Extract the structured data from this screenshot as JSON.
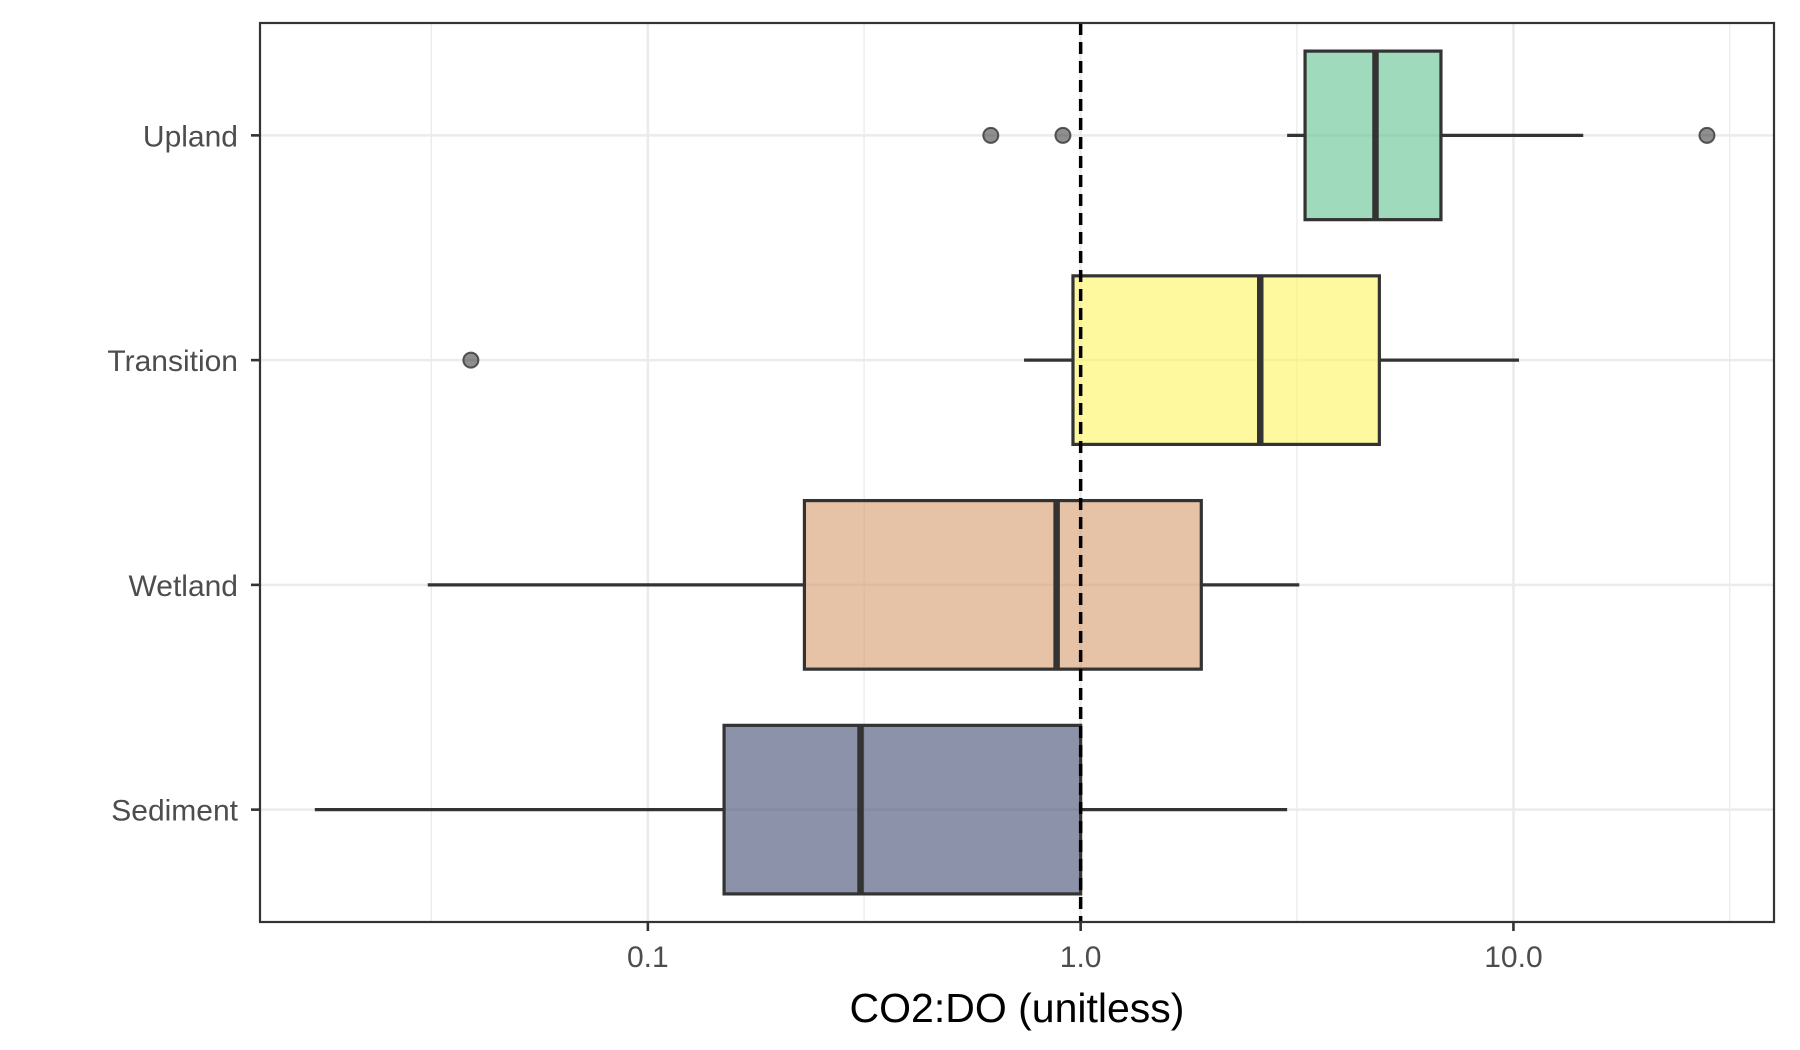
{
  "chart_data": {
    "type": "boxplot",
    "orientation": "horizontal",
    "xlabel": "CO2:DO (unitless)",
    "ylabel": "",
    "x_scale": "log10",
    "xlim": [
      0.0127,
      40
    ],
    "x_ticks": [
      {
        "value": 0.1,
        "label": "0.1"
      },
      {
        "value": 1,
        "label": "1.0"
      },
      {
        "value": 10,
        "label": "10.0"
      }
    ],
    "x_minor_grid": [
      0.0316,
      0.316,
      3.16,
      31.6
    ],
    "reference_line": {
      "x": 1,
      "style": "dashed",
      "color": "#000000"
    },
    "grid": true,
    "theme": "bw",
    "box_opacity": 0.6,
    "categories": [
      "Upland",
      "Transition",
      "Wetland",
      "Sediment"
    ],
    "boxes": [
      {
        "category": "Upland",
        "color": "#5ec28e",
        "whisker_low": 3.0,
        "q1": 3.3,
        "median": 4.8,
        "q3": 6.8,
        "whisker_high": 14.5,
        "outliers": [
          0.62,
          0.91,
          28.0
        ]
      },
      {
        "category": "Transition",
        "color": "#fdf45f",
        "whisker_low": 0.74,
        "q1": 0.96,
        "median": 2.6,
        "q3": 4.9,
        "whisker_high": 10.3,
        "outliers": [
          0.039
        ]
      },
      {
        "category": "Wetland",
        "color": "#d69a6a",
        "whisker_low": 0.031,
        "q1": 0.23,
        "median": 0.88,
        "q3": 1.9,
        "whisker_high": 3.2,
        "outliers": []
      },
      {
        "category": "Sediment",
        "color": "#3f4a72",
        "whisker_low": 0.017,
        "q1": 0.15,
        "median": 0.31,
        "q3": 1.0,
        "whisker_high": 3.0,
        "outliers": []
      }
    ]
  }
}
